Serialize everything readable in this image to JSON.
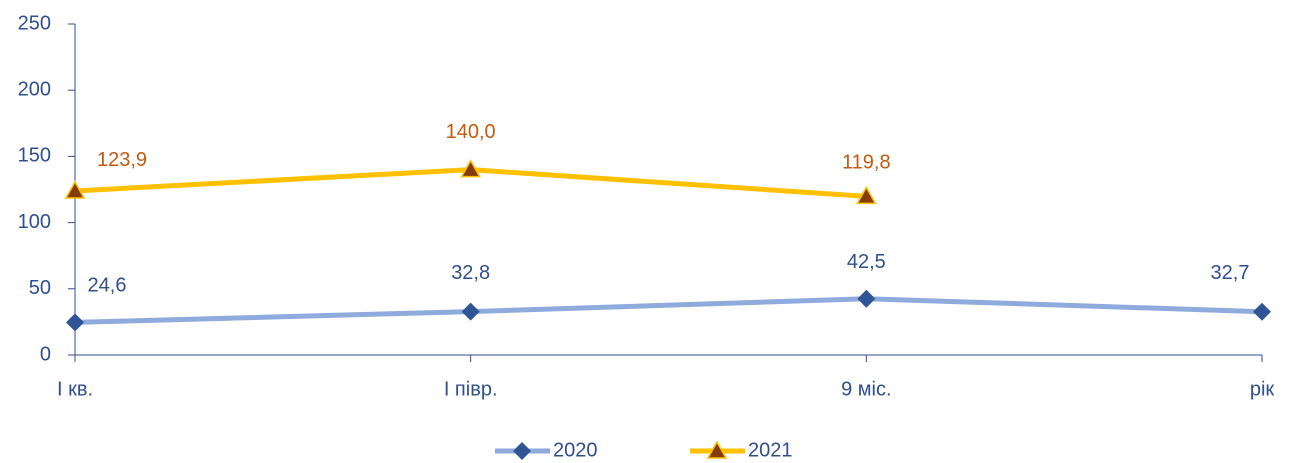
{
  "chart_data": {
    "type": "line",
    "categories": [
      "I кв.",
      "I півр.",
      "9 міс.",
      "рік"
    ],
    "series": [
      {
        "name": "2020",
        "color": "#8faadc",
        "marker_color": "#2f5597",
        "label_color": "#2f4f8f",
        "marker": "diamond",
        "values": [
          24.6,
          32.8,
          42.5,
          32.7
        ],
        "value_labels": [
          "24,6",
          "32,8",
          "42,5",
          "32,7"
        ]
      },
      {
        "name": "2021",
        "color": "#ffc000",
        "marker_color": "#843c0c",
        "label_color": "#c55a11",
        "marker": "triangle",
        "values": [
          123.9,
          140.0,
          119.8,
          null
        ],
        "value_labels": [
          "123,9",
          "140,0",
          "119,8",
          null
        ]
      }
    ],
    "ylim": [
      0,
      250
    ],
    "yticks": [
      0,
      50,
      100,
      150,
      200,
      250
    ],
    "grid": false,
    "legend": "bottom"
  }
}
